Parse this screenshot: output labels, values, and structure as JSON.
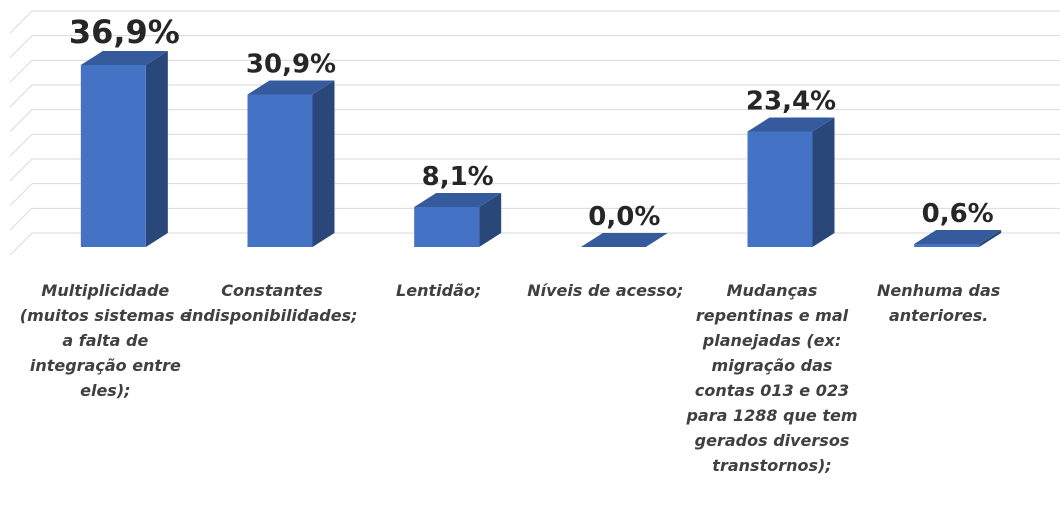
{
  "chart_data": {
    "type": "bar3d",
    "categories": [
      "Multiplicidade (muitos sistemas e a falta de integração entre eles);",
      "Constantes indisponibilidades;",
      "Lentidão;",
      "Níveis de acesso;",
      "Mudanças repentinas e mal planejadas (ex: migração das contas 013 e 023 para 1288 que tem gerados diversos transtornos);",
      "Nenhuma das anteriores."
    ],
    "values": [
      36.9,
      30.9,
      8.1,
      0.0,
      23.4,
      0.6
    ],
    "value_labels": [
      "36,9%",
      "30,9%",
      "8,1%",
      "0,0%",
      "23,4%",
      "0,6%"
    ],
    "color": "#4472c4",
    "ylim": [
      0,
      45
    ],
    "yticks": [
      0,
      5,
      10,
      15,
      20,
      25,
      30,
      35,
      40,
      45
    ],
    "grid": true
  }
}
